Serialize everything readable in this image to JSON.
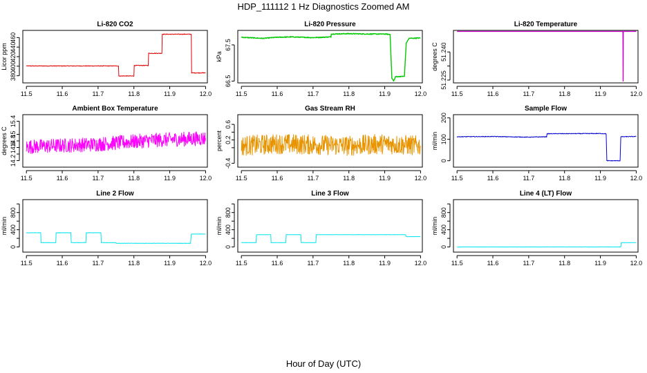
{
  "page": {
    "title": "HDP_111112  1 Hz Diagnostics Zoomed AM",
    "xlabel": "Hour of Day (UTC)"
  },
  "chart_data": [
    {
      "type": "line",
      "title": "Li-820 CO2",
      "ylabel": "Licor ppm",
      "color": "#e00000",
      "xlim": [
        11.49,
        12.005
      ],
      "ylim": [
        365,
        475
      ],
      "yticks": [
        380,
        400,
        420,
        440,
        460
      ],
      "xticks": [
        11.5,
        11.6,
        11.7,
        11.8,
        11.9,
        12.0
      ],
      "series": [
        {
          "name": "CO2",
          "noise": 0.7,
          "points": [
            [
              11.5,
              400.5
            ],
            [
              11.757,
              400.5
            ],
            [
              11.758,
              379.5
            ],
            [
              11.8,
              379.5
            ],
            [
              11.801,
              401.5
            ],
            [
              11.84,
              401.5
            ],
            [
              11.841,
              427
            ],
            [
              11.878,
              427
            ],
            [
              11.879,
              467
            ],
            [
              11.96,
              467
            ],
            [
              11.961,
              386
            ],
            [
              12.0,
              386
            ]
          ]
        }
      ]
    },
    {
      "type": "line",
      "title": "Li-820 Pressure",
      "ylabel": "kPa",
      "color": "#00c800",
      "xlim": [
        11.49,
        12.005
      ],
      "ylim": [
        66.45,
        67.9
      ],
      "yticks": [
        66.5,
        67.5
      ],
      "xticks": [
        11.5,
        11.6,
        11.7,
        11.8,
        11.9,
        12.0
      ],
      "series": [
        {
          "name": "Pressure",
          "noise": 0.012,
          "points": [
            [
              11.5,
              67.71
            ],
            [
              11.52,
              67.7
            ],
            [
              11.56,
              67.68
            ],
            [
              11.6,
              67.71
            ],
            [
              11.64,
              67.72
            ],
            [
              11.7,
              67.7
            ],
            [
              11.75,
              67.72
            ],
            [
              11.751,
              67.8
            ],
            [
              11.8,
              67.81
            ],
            [
              11.85,
              67.8
            ],
            [
              11.9,
              67.8
            ],
            [
              11.915,
              67.79
            ],
            [
              11.92,
              66.58
            ],
            [
              11.925,
              66.5
            ],
            [
              11.93,
              66.62
            ],
            [
              11.955,
              66.63
            ],
            [
              11.96,
              67.55
            ],
            [
              11.968,
              67.68
            ],
            [
              12.0,
              67.69
            ]
          ]
        }
      ]
    },
    {
      "type": "line",
      "title": "Li-820 Temperature",
      "ylabel": "degrees C",
      "color": "#c800c8",
      "xlim": [
        11.49,
        12.005
      ],
      "ylim": [
        51.2235,
        51.2515
      ],
      "yticks": [
        51.225,
        51.24
      ],
      "yticklabels": [
        "51.225",
        "51.240"
      ],
      "extra_ytick": 51.2325,
      "xticks": [
        11.5,
        11.6,
        11.7,
        11.8,
        11.9,
        12.0
      ],
      "series": [
        {
          "name": "Temperature",
          "noise": 0,
          "points": [
            [
              11.5,
              51.251
            ],
            [
              11.963,
              51.251
            ],
            [
              11.9635,
              51.2245
            ],
            [
              11.964,
              51.251
            ],
            [
              12.0,
              51.251
            ]
          ]
        }
      ]
    },
    {
      "type": "line",
      "title": "Ambient Box Temperature",
      "ylabel": "degrees C",
      "color": "#ff00ff",
      "xlim": [
        11.49,
        12.005
      ],
      "ylim": [
        14.0,
        15.6
      ],
      "yticks": [
        14.2,
        14.6,
        14.8,
        15.0,
        15.4
      ],
      "extra_yticks": [
        14.4
      ],
      "xticks": [
        11.5,
        11.6,
        11.7,
        11.8,
        11.9,
        12.0
      ],
      "series": [
        {
          "name": "BoxTemp",
          "noise": 0.22,
          "points": [
            [
              11.5,
              14.62
            ],
            [
              11.7,
              14.7
            ],
            [
              11.85,
              14.82
            ],
            [
              12.0,
              14.88
            ]
          ]
        }
      ]
    },
    {
      "type": "line",
      "title": "Gas Stream RH",
      "ylabel": "percent",
      "color": "#e89400",
      "xlim": [
        11.49,
        12.005
      ],
      "ylim": [
        -0.5,
        0.85
      ],
      "yticks": [
        -0.4,
        0.2,
        0.6
      ],
      "yticklabels": [
        "-0.4",
        "0.2",
        "0.6"
      ],
      "extra_yticks": [
        0.0,
        0.4
      ],
      "xticks": [
        11.5,
        11.6,
        11.7,
        11.8,
        11.9,
        12.0
      ],
      "series": [
        {
          "name": "RH",
          "noise": 0.26,
          "points": [
            [
              11.5,
              0.05
            ],
            [
              11.6,
              0.1
            ],
            [
              11.7,
              0.08
            ],
            [
              11.8,
              0.05
            ],
            [
              11.9,
              0.1
            ],
            [
              12.0,
              0.05
            ]
          ]
        }
      ]
    },
    {
      "type": "line",
      "title": "Sample Flow",
      "ylabel": "ml/min",
      "color": "#0000d0",
      "xlim": [
        11.49,
        12.005
      ],
      "ylim": [
        -30,
        215
      ],
      "yticks": [
        0,
        100,
        200
      ],
      "xticks": [
        11.5,
        11.6,
        11.7,
        11.8,
        11.9,
        12.0
      ],
      "series": [
        {
          "name": "SampleFlow",
          "noise": 1.5,
          "points": [
            [
              11.5,
              112
            ],
            [
              11.6,
              113
            ],
            [
              11.7,
              110
            ],
            [
              11.75,
              112
            ],
            [
              11.751,
              126
            ],
            [
              11.9,
              127
            ],
            [
              11.916,
              126
            ],
            [
              11.918,
              0
            ],
            [
              11.955,
              0
            ],
            [
              11.957,
              112
            ],
            [
              12.0,
              113
            ]
          ]
        }
      ]
    },
    {
      "type": "line",
      "title": "Line 2 Flow",
      "ylabel": "ml/min",
      "color": "#00e5ee",
      "xlim": [
        11.49,
        12.005
      ],
      "ylim": [
        -120,
        1100
      ],
      "yticks": [
        0,
        400,
        800
      ],
      "extra_yticks": [
        200,
        600,
        1000
      ],
      "xticks": [
        11.5,
        11.6,
        11.7,
        11.8,
        11.9,
        12.0
      ],
      "series": [
        {
          "name": "Line2",
          "noise": 4,
          "points": [
            [
              11.5,
              330
            ],
            [
              11.54,
              330
            ],
            [
              11.541,
              100
            ],
            [
              11.582,
              100
            ],
            [
              11.583,
              330
            ],
            [
              11.624,
              330
            ],
            [
              11.625,
              100
            ],
            [
              11.666,
              100
            ],
            [
              11.667,
              330
            ],
            [
              11.708,
              330
            ],
            [
              11.709,
              100
            ],
            [
              11.75,
              100
            ],
            [
              11.751,
              85
            ],
            [
              11.958,
              85
            ],
            [
              11.96,
              300
            ],
            [
              12.0,
              300
            ]
          ]
        }
      ]
    },
    {
      "type": "line",
      "title": "Line 3 Flow",
      "ylabel": "ml/min",
      "color": "#00e5ee",
      "xlim": [
        11.49,
        12.005
      ],
      "ylim": [
        -120,
        1100
      ],
      "yticks": [
        0,
        400,
        800
      ],
      "extra_yticks": [
        200,
        600,
        1000
      ],
      "xticks": [
        11.5,
        11.6,
        11.7,
        11.8,
        11.9,
        12.0
      ],
      "series": [
        {
          "name": "Line3",
          "noise": 3,
          "points": [
            [
              11.5,
              100
            ],
            [
              11.541,
              100
            ],
            [
              11.542,
              285
            ],
            [
              11.582,
              285
            ],
            [
              11.583,
              100
            ],
            [
              11.624,
              100
            ],
            [
              11.625,
              285
            ],
            [
              11.666,
              285
            ],
            [
              11.667,
              100
            ],
            [
              11.708,
              100
            ],
            [
              11.709,
              285
            ],
            [
              11.958,
              285
            ],
            [
              11.96,
              240
            ],
            [
              12.0,
              240
            ]
          ]
        }
      ]
    },
    {
      "type": "line",
      "title": "Line 4 (LT) Flow",
      "ylabel": "ml/min",
      "color": "#00e5ee",
      "xlim": [
        11.49,
        12.005
      ],
      "ylim": [
        -120,
        1100
      ],
      "yticks": [
        0,
        400,
        800
      ],
      "extra_yticks": [
        200,
        600,
        1000
      ],
      "xticks": [
        11.5,
        11.6,
        11.7,
        11.8,
        11.9,
        12.0
      ],
      "series": [
        {
          "name": "Line4",
          "noise": 2,
          "points": [
            [
              11.5,
              0
            ],
            [
              11.957,
              0
            ],
            [
              11.958,
              100
            ],
            [
              12.0,
              100
            ]
          ]
        }
      ]
    }
  ]
}
